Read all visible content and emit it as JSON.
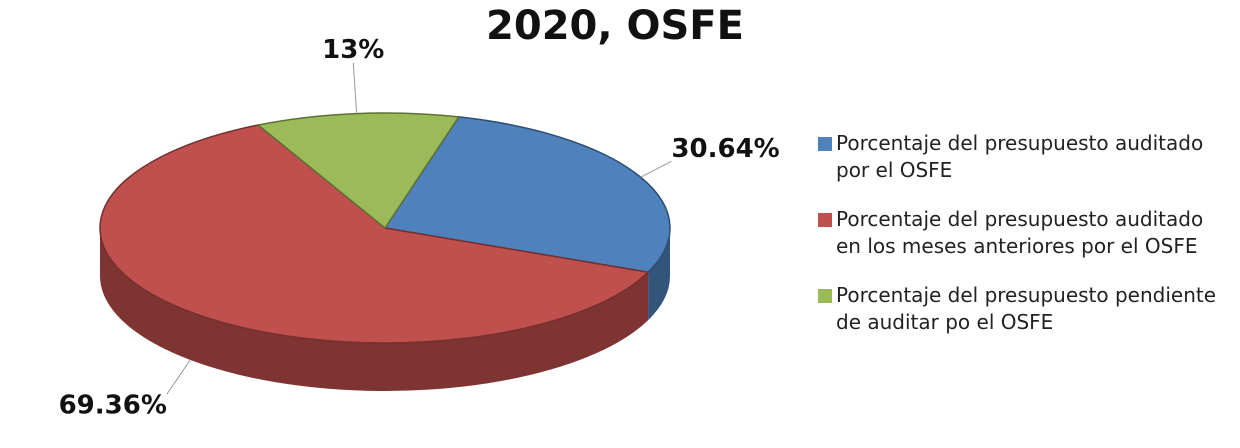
{
  "chart_data": {
    "type": "pie",
    "title": "2020, OSFE",
    "categories": [
      "Porcentaje del presupuesto auditado por el OSFE",
      "Porcentaje del presupuesto auditado en los meses anteriores por el OSFE",
      "Porcentaje del presupuesto pendiente de auditar po el OSFE"
    ],
    "values": [
      30.64,
      69.36,
      13
    ],
    "value_labels": [
      "30.64%",
      "69.36%",
      "13%"
    ],
    "colors": [
      "#4f81bd",
      "#c0504d",
      "#9bbb59"
    ],
    "legend": "right"
  }
}
